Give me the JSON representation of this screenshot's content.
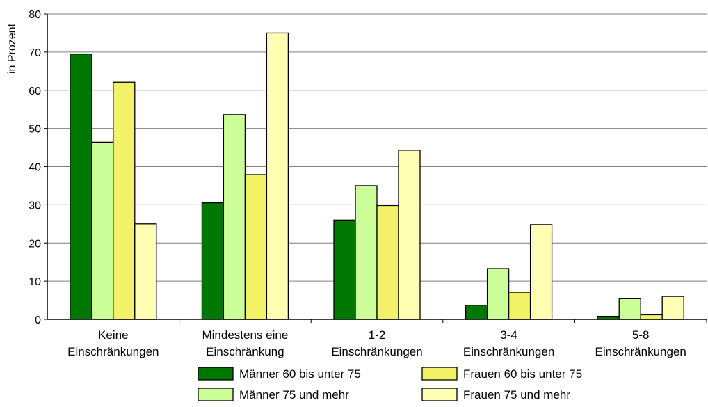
{
  "chart_data": {
    "type": "bar",
    "title": "",
    "xlabel": "",
    "ylabel": "in Prozent",
    "ylim": [
      0,
      80
    ],
    "yticks": [
      0,
      10,
      20,
      30,
      40,
      50,
      60,
      70,
      80
    ],
    "grid": true,
    "legend_position": "bottom",
    "categories": [
      [
        "Keine",
        "Einschränkungen"
      ],
      [
        "Mindestens eine",
        "Einschränkung"
      ],
      [
        "1-2",
        "Einschränkungen"
      ],
      [
        "3-4",
        "Einschränkungen"
      ],
      [
        "5-8",
        "Einschränkungen"
      ]
    ],
    "series": [
      {
        "name": "Männer 60 bis unter 75",
        "color": "#007700",
        "values": [
          69.5,
          30.5,
          26,
          3.7,
          0.8
        ]
      },
      {
        "name": "Männer 75 und mehr",
        "color": "#ccff99",
        "values": [
          46.4,
          53.6,
          35,
          13.3,
          5.4
        ]
      },
      {
        "name": "Frauen 60 bis unter 75",
        "color": "#f2f266",
        "values": [
          62.1,
          37.9,
          29.8,
          7.1,
          1.2
        ]
      },
      {
        "name": "Frauen 75 und mehr",
        "color": "#ffffb3",
        "values": [
          25,
          75,
          44.3,
          24.8,
          6
        ]
      }
    ]
  }
}
